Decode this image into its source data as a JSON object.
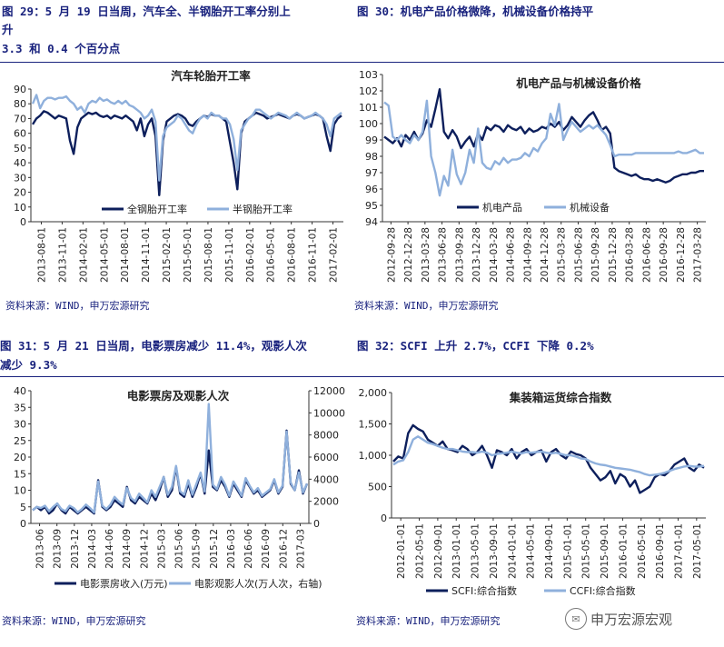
{
  "titles": {
    "fig29_line1": "图 29：5 月 19 日当周，汽车全、半钢胎开工率分别上",
    "fig29_line2": "升",
    "fig29_line3": "3.3 和 0.4 个百分点",
    "fig30": "图 30：机电产品价格微降，机械设备价格持平",
    "fig31_line1": "图 31：5 月 21 日当周，电影票房减少 11.4%，观影人次",
    "fig31_line2": "减少 9.3%",
    "fig32": "图 32：SCFI 上升 2.7%，CCFI 下降 0.2%"
  },
  "sources": {
    "s29": "资料来源：WIND，申万宏源研究",
    "s30": "资料来源：WIND，申万宏源研究",
    "s31": "资料来源：WIND，申万宏源研究",
    "s32": "资料来源：WIND，申万宏源研究"
  },
  "watermark": {
    "icon": "wechat-icon",
    "text": "申万宏源宏观"
  },
  "colors": {
    "dark": "#0d1f5c",
    "light": "#8fb0dc"
  },
  "chart_data": [
    {
      "id": "tyre",
      "type": "line",
      "title": "汽车轮胎开工率",
      "ylim": [
        0,
        90
      ],
      "yticks": [
        0,
        10,
        20,
        30,
        40,
        50,
        60,
        70,
        80,
        90
      ],
      "xticks": [
        "2013-08-01",
        "2013-11-01",
        "2014-02-01",
        "2014-05-01",
        "2014-08-01",
        "2014-11-01",
        "2015-02-01",
        "2015-05-01",
        "2015-08-01",
        "2015-11-01",
        "2016-02-01",
        "2016-05-01",
        "2016-08-01",
        "2016-11-01",
        "2017-02-01"
      ],
      "series": [
        {
          "name": "全钢胎开工率",
          "color": "#0d1f5c",
          "values": [
            66,
            70,
            72,
            75,
            74,
            72,
            70,
            72,
            71,
            70,
            55,
            46,
            64,
            70,
            72,
            74,
            73,
            74,
            72,
            71,
            72,
            70,
            72,
            71,
            70,
            72,
            70,
            68,
            62,
            70,
            58,
            66,
            70,
            58,
            18,
            55,
            68,
            70,
            72,
            73,
            72,
            70,
            66,
            65,
            68,
            70,
            72,
            71,
            73,
            72,
            72,
            70,
            68,
            54,
            40,
            22,
            60,
            68,
            70,
            72,
            74,
            73,
            72,
            70,
            71,
            72,
            73,
            72,
            71,
            70,
            72,
            73,
            72,
            70,
            71,
            72,
            73,
            72,
            70,
            58,
            48,
            66,
            70,
            72
          ]
        },
        {
          "name": "半钢胎开工率",
          "color": "#8fb0dc",
          "values": [
            80,
            86,
            77,
            82,
            84,
            84,
            83,
            84,
            84,
            85,
            82,
            80,
            76,
            78,
            74,
            80,
            82,
            81,
            84,
            82,
            83,
            81,
            80,
            82,
            80,
            82,
            79,
            78,
            76,
            74,
            70,
            72,
            76,
            68,
            28,
            58,
            64,
            66,
            68,
            72,
            70,
            66,
            62,
            60,
            66,
            70,
            72,
            70,
            74,
            72,
            72,
            70,
            70,
            66,
            56,
            35,
            62,
            66,
            70,
            72,
            76,
            76,
            74,
            72,
            70,
            72,
            74,
            73,
            72,
            70,
            72,
            74,
            72,
            70,
            71,
            72,
            74,
            72,
            70,
            66,
            58,
            70,
            72,
            74
          ]
        }
      ]
    },
    {
      "id": "mech",
      "type": "line",
      "title": "机电产品与机械设备价格",
      "ylim": [
        94,
        103
      ],
      "yticks": [
        94,
        95,
        96,
        97,
        98,
        99,
        100,
        101,
        102,
        103
      ],
      "xticks": [
        "2012-09-28",
        "2012-12-28",
        "2013-03-28",
        "2013-06-28",
        "2013-09-28",
        "2013-12-28",
        "2014-03-28",
        "2014-06-28",
        "2014-09-28",
        "2014-12-28",
        "2015-03-28",
        "2015-06-28",
        "2015-09-28",
        "2015-12-28",
        "2016-03-28",
        "2016-06-28",
        "2016-09-28",
        "2016-12-28",
        "2017-03-28"
      ],
      "series": [
        {
          "name": "机电产品",
          "color": "#0d1f5c",
          "values": [
            99.2,
            99.0,
            98.8,
            99.1,
            98.6,
            99.3,
            99.0,
            99.5,
            99.0,
            99.4,
            100.2,
            99.8,
            100.9,
            102.1,
            99.5,
            99.1,
            99.6,
            99.2,
            98.5,
            98.9,
            99.2,
            98.6,
            99.4,
            99.0,
            99.8,
            99.6,
            99.9,
            99.8,
            99.5,
            99.9,
            99.7,
            99.6,
            99.8,
            99.4,
            99.7,
            99.5,
            99.6,
            99.8,
            99.7,
            100.0,
            99.8,
            100.1,
            99.6,
            99.9,
            100.4,
            100.1,
            99.8,
            100.2,
            100.5,
            100.7,
            100.2,
            99.6,
            99.8,
            99.4,
            97.3,
            97.1,
            97.0,
            96.9,
            96.8,
            96.9,
            96.7,
            96.6,
            96.6,
            96.5,
            96.6,
            96.5,
            96.4,
            96.5,
            96.7,
            96.8,
            96.9,
            96.9,
            97.0,
            97.0,
            97.1,
            97.1
          ]
        },
        {
          "name": "机械设备",
          "color": "#8fb0dc",
          "values": [
            101.3,
            101.1,
            99.2,
            99.0,
            99.3,
            99.0,
            98.8,
            99.3,
            99.0,
            99.5,
            101.4,
            98.0,
            97.0,
            95.6,
            96.8,
            96.2,
            98.4,
            96.9,
            96.3,
            97.0,
            98.4,
            97.6,
            99.7,
            97.6,
            97.3,
            97.2,
            97.7,
            97.5,
            97.9,
            97.6,
            97.8,
            97.8,
            97.9,
            98.2,
            98.0,
            98.5,
            98.3,
            98.8,
            99.1,
            100.6,
            99.9,
            101.2,
            99.0,
            99.6,
            100.1,
            99.8,
            99.5,
            99.7,
            99.9,
            99.7,
            99.9,
            99.6,
            99.3,
            98.7,
            98.0,
            98.1,
            98.1,
            98.1,
            98.1,
            98.2,
            98.2,
            98.2,
            98.2,
            98.2,
            98.2,
            98.2,
            98.2,
            98.2,
            98.2,
            98.3,
            98.2,
            98.2,
            98.3,
            98.4,
            98.2,
            98.2
          ]
        }
      ]
    },
    {
      "id": "movie",
      "type": "line",
      "title": "电影票房及观影人次",
      "ylim": [
        0,
        40
      ],
      "y2lim": [
        0,
        12000
      ],
      "yticks": [
        0,
        5,
        10,
        15,
        20,
        25,
        30,
        35,
        40
      ],
      "y2ticks": [
        0,
        2000,
        4000,
        6000,
        8000,
        10000,
        12000
      ],
      "xticks": [
        "2013-06",
        "2013-09",
        "2013-12",
        "2014-03",
        "2014-06",
        "2014-09",
        "2014-12",
        "2015-03",
        "2015-06",
        "2015-09",
        "2015-12",
        "2016-03",
        "2016-06",
        "2016-09",
        "2016-12",
        "2017-03"
      ],
      "series": [
        {
          "name": "电影票房收入(万元)",
          "color": "#0d1f5c",
          "values": [
            4,
            5,
            4,
            5,
            3,
            4,
            6,
            4,
            3,
            5,
            4,
            3,
            4,
            5,
            4,
            3,
            13,
            5,
            4,
            5,
            7,
            6,
            5,
            11,
            7,
            6,
            8,
            7,
            6,
            9,
            7,
            10,
            14,
            8,
            10,
            17,
            9,
            8,
            12,
            8,
            11,
            15,
            9,
            22,
            11,
            10,
            13,
            11,
            8,
            12,
            10,
            8,
            13,
            11,
            9,
            10,
            8,
            9,
            10,
            13,
            9,
            11,
            28,
            12,
            10,
            16,
            9,
            12
          ]
        },
        {
          "name": "电影观影人次(万人次，右轴)",
          "color": "#8fb0dc",
          "axis": "right",
          "values": [
            1200,
            1500,
            1400,
            1600,
            1100,
            1500,
            1800,
            1300,
            1100,
            1600,
            1400,
            1000,
            1300,
            1700,
            1400,
            1000,
            3800,
            1600,
            1300,
            1700,
            2400,
            2000,
            1700,
            3200,
            2300,
            2000,
            2700,
            2300,
            1900,
            3000,
            2400,
            3300,
            4200,
            2600,
            3300,
            5200,
            2900,
            2600,
            3900,
            2600,
            3600,
            4600,
            2900,
            10800,
            3500,
            3100,
            4200,
            3500,
            2500,
            3800,
            3200,
            2500,
            4100,
            3400,
            2800,
            3200,
            2500,
            2800,
            3100,
            4000,
            2800,
            3400,
            8300,
            3700,
            3000,
            4600,
            2800,
            3600
          ]
        }
      ]
    },
    {
      "id": "container",
      "type": "line",
      "title": "集装箱运货综合指数",
      "ylim": [
        0,
        2000
      ],
      "yticks": [
        0,
        500,
        1000,
        1500,
        2000
      ],
      "ytick_labels": [
        "0",
        "500",
        "1,000",
        "1,500",
        "2,000"
      ],
      "xticks": [
        "2012-01-01",
        "2012-05-01",
        "2012-09-01",
        "2013-01-01",
        "2013-05-01",
        "2013-09-01",
        "2014-01-01",
        "2014-05-01",
        "2014-09-01",
        "2015-01-01",
        "2015-05-01",
        "2015-09-01",
        "2016-01-01",
        "2016-05-01",
        "2016-09-01",
        "2017-01-01",
        "2017-05-01"
      ],
      "series": [
        {
          "name": "SCFI:综合指数",
          "color": "#0d1f5c",
          "values": [
            900,
            980,
            950,
            1350,
            1480,
            1420,
            1380,
            1250,
            1200,
            1150,
            1220,
            1100,
            1080,
            1050,
            1150,
            1100,
            1000,
            1050,
            1150,
            1000,
            800,
            1080,
            1050,
            1000,
            1100,
            950,
            1050,
            1100,
            1000,
            1050,
            1080,
            900,
            1050,
            1100,
            1000,
            950,
            1060,
            1020,
            1000,
            950,
            800,
            700,
            600,
            650,
            750,
            550,
            700,
            650,
            500,
            600,
            400,
            450,
            500,
            650,
            700,
            680,
            750,
            850,
            900,
            950,
            800,
            750,
            850,
            800
          ]
        },
        {
          "name": "CCFI:综合指数",
          "color": "#8fb0dc",
          "values": [
            850,
            900,
            920,
            1050,
            1250,
            1300,
            1250,
            1200,
            1180,
            1150,
            1120,
            1100,
            1100,
            1080,
            1060,
            1050,
            1050,
            1040,
            1060,
            1040,
            1000,
            1020,
            1030,
            1040,
            1060,
            1040,
            1030,
            1050,
            1040,
            1050,
            1060,
            1040,
            1030,
            1040,
            1020,
            1000,
            1000,
            980,
            950,
            940,
            900,
            870,
            850,
            840,
            820,
            800,
            790,
            780,
            770,
            750,
            730,
            700,
            680,
            690,
            700,
            720,
            750,
            780,
            800,
            820,
            830,
            820,
            820,
            830
          ]
        }
      ]
    }
  ]
}
